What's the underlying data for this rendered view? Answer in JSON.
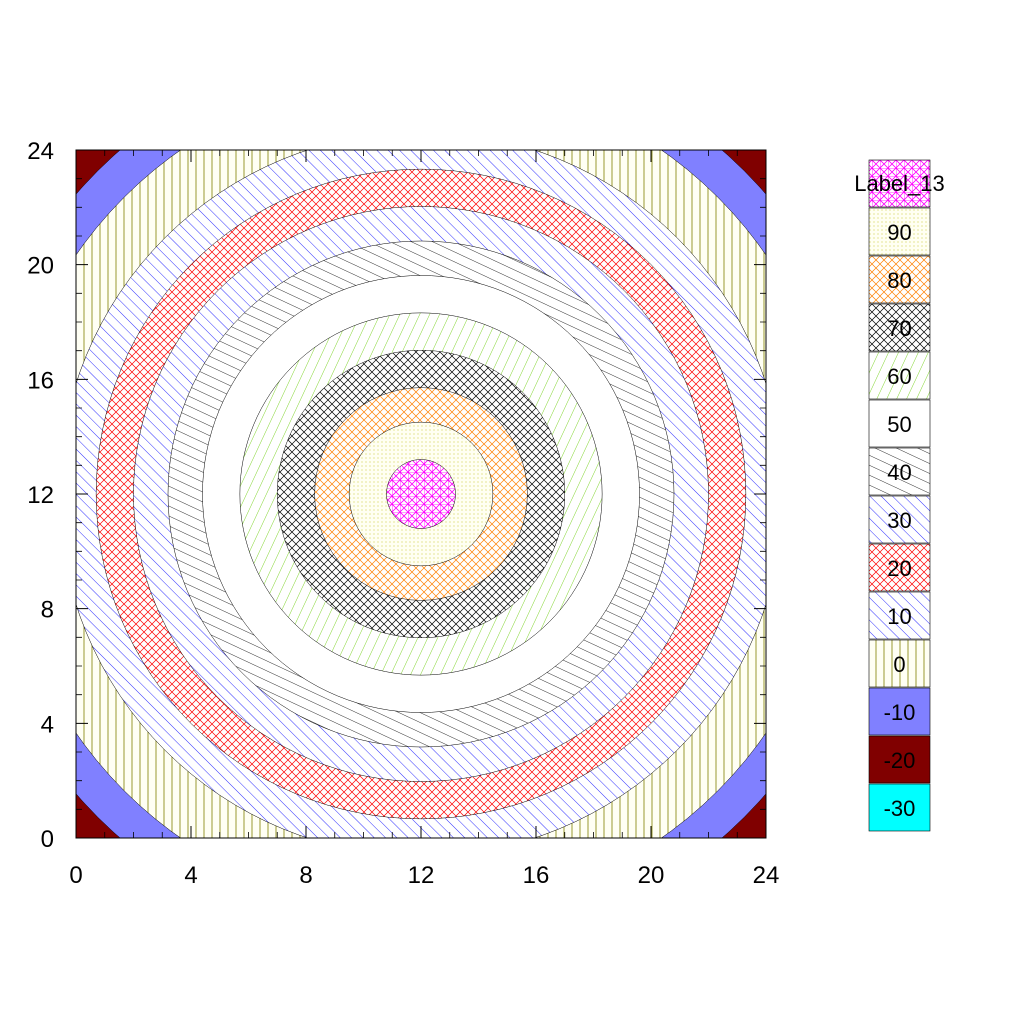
{
  "chart_data": {
    "type": "heatmap",
    "subtype": "filled-contour",
    "title": "",
    "xlabel": "",
    "ylabel": "",
    "xlim": [
      0,
      24
    ],
    "ylim": [
      0,
      24
    ],
    "x_ticks": [
      "0",
      "4",
      "8",
      "12",
      "16",
      "20",
      "24"
    ],
    "y_ticks": [
      "0",
      "4",
      "8",
      "12",
      "16",
      "20",
      "24"
    ],
    "center": [
      12,
      12
    ],
    "grid": false,
    "legend_position": "right",
    "levels": [
      {
        "label": "Label_13",
        "color": "#ff00ff",
        "pattern": "grid"
      },
      {
        "label": "90",
        "color": "#b7b700",
        "pattern": "dots"
      },
      {
        "label": "80",
        "color": "#ff8000",
        "pattern": "crosshatch"
      },
      {
        "label": "70",
        "color": "#000000",
        "pattern": "crosshatch"
      },
      {
        "label": "60",
        "color": "#66cc00",
        "pattern": "diag-left"
      },
      {
        "label": "50",
        "color": "#ffffff",
        "pattern": "solid"
      },
      {
        "label": "40",
        "color": "#000000",
        "pattern": "diag-shallow"
      },
      {
        "label": "30",
        "color": "#0000ff",
        "pattern": "diag-right"
      },
      {
        "label": "20",
        "color": "#ff0000",
        "pattern": "crosshatch"
      },
      {
        "label": "10",
        "color": "#0000ff",
        "pattern": "diag-right"
      },
      {
        "label": "0",
        "color": "#808000",
        "pattern": "vertical"
      },
      {
        "label": "-10",
        "color": "#8080ff",
        "pattern": "solid"
      },
      {
        "label": "-20",
        "color": "#800000",
        "pattern": "solid"
      },
      {
        "label": "-30",
        "color": "#00ffff",
        "pattern": "solid"
      }
    ],
    "contour_radii": [
      1.2,
      2.5,
      3.7,
      5.0,
      6.3,
      7.6,
      8.8,
      10.0,
      11.3,
      12.6,
      14.6,
      15.9,
      17.2
    ]
  }
}
